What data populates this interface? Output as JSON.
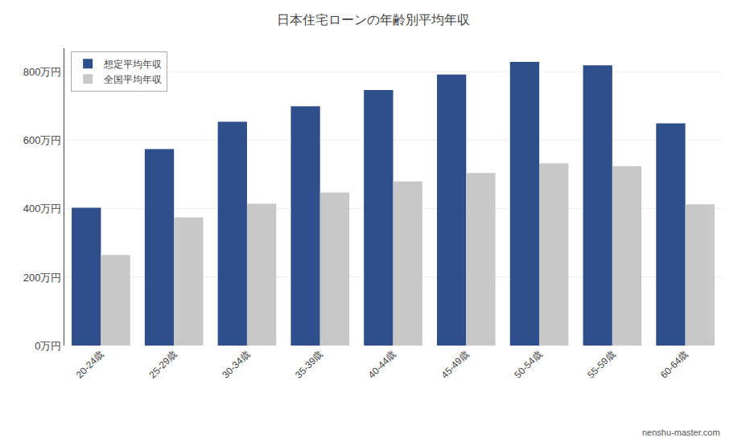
{
  "chart_data": {
    "type": "bar",
    "title": "日本住宅ローンの年齢別平均年収",
    "categories": [
      "20-24歳",
      "25-29歳",
      "30-34歳",
      "35-39歳",
      "40-44歳",
      "45-49歳",
      "50-54歳",
      "55-59歳",
      "60-64歳"
    ],
    "series": [
      {
        "name": "想定平均年収",
        "color": "#2E4E8C",
        "values": [
          403,
          575,
          655,
          700,
          748,
          793,
          830,
          820,
          650
        ]
      },
      {
        "name": "全国平均年収",
        "color": "#C8C8C8",
        "values": [
          265,
          375,
          415,
          448,
          480,
          505,
          533,
          525,
          413
        ]
      }
    ],
    "ylim": [
      0,
      870
    ],
    "yticks": [
      {
        "value": 0,
        "label": "0万円"
      },
      {
        "value": 200,
        "label": "200万円"
      },
      {
        "value": 400,
        "label": "400万円"
      },
      {
        "value": 600,
        "label": "600万円"
      },
      {
        "value": 800,
        "label": "800万円"
      }
    ],
    "grid": true,
    "legend": "upper left",
    "annotations": [
      "nenshu-master.com"
    ]
  }
}
